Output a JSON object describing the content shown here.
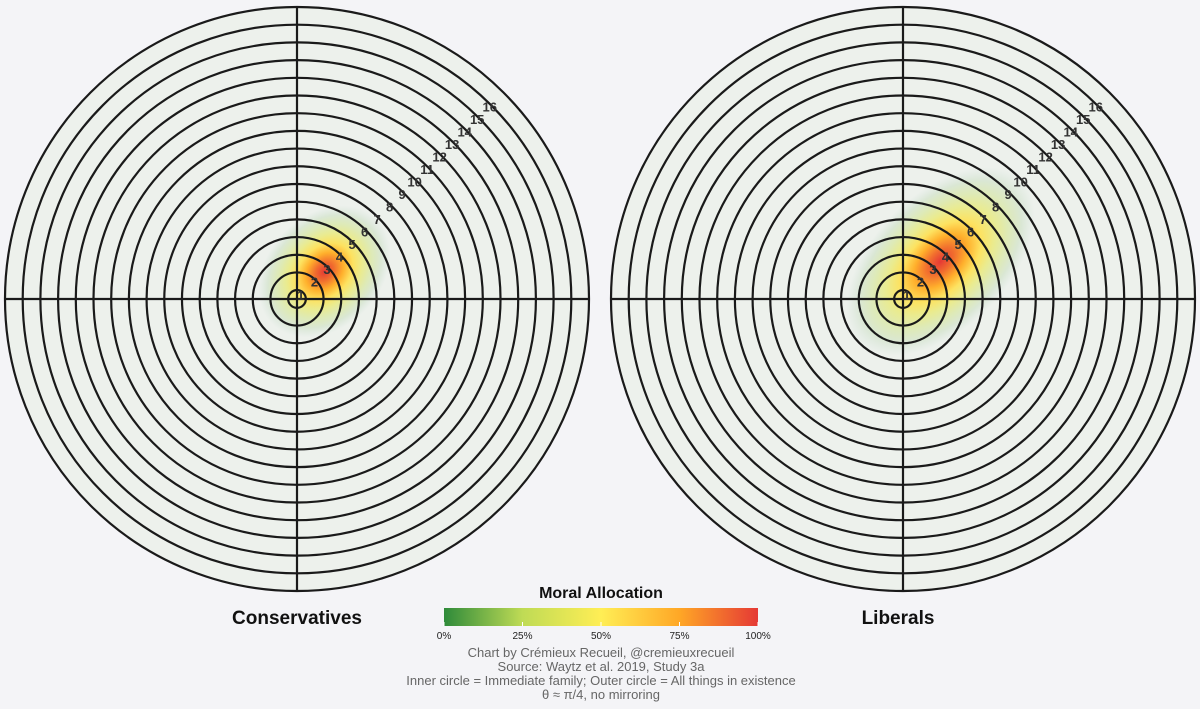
{
  "chart_data": {
    "type": "heatmap",
    "subtype": "polar-density",
    "rings": [
      1,
      2,
      3,
      4,
      5,
      6,
      7,
      8,
      9,
      10,
      11,
      12,
      13,
      14,
      15,
      16
    ],
    "panels": [
      {
        "title": "Conservatives",
        "peak_ring": 2.2,
        "spread": 3.2,
        "spread_along_theta": 4.2,
        "peak_value": 1.0
      },
      {
        "title": "Liberals",
        "peak_ring": 3.0,
        "spread": 3.8,
        "spread_along_theta": 6.5,
        "peak_value": 1.0
      }
    ],
    "theta_label": "θ ≈ π/4",
    "colorbar": {
      "title": "Moral Allocation",
      "ticks": [
        "0%",
        "25%",
        "50%",
        "75%",
        "100%"
      ],
      "colors": [
        "#2e8a3a",
        "#bfdb55",
        "#ffee55",
        "#ffa726",
        "#e53935"
      ]
    },
    "caption": [
      "Chart by Crémieux Recueil, @cremieuxrecueil",
      "Source: Waytz et al. 2019, Study 3a",
      "Inner circle = Immediate family; Outer circle = All things in existence",
      "θ ≈ π/4, no mirroring"
    ]
  }
}
